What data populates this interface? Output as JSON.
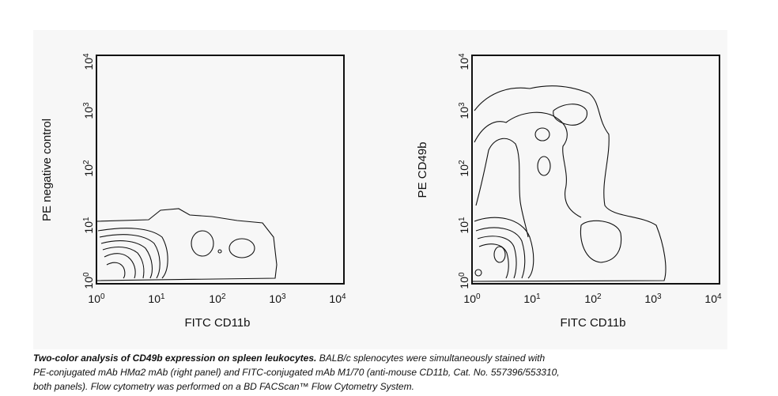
{
  "panels": [
    {
      "y_label": "PE negative control",
      "x_label": "FITC CD11b",
      "xticks": [
        {
          "base": "10",
          "exp": "0"
        },
        {
          "base": "10",
          "exp": "1"
        },
        {
          "base": "10",
          "exp": "2"
        },
        {
          "base": "10",
          "exp": "3"
        },
        {
          "base": "10",
          "exp": "4"
        }
      ],
      "yticks": [
        {
          "base": "10",
          "exp": "0"
        },
        {
          "base": "10",
          "exp": "1"
        },
        {
          "base": "10",
          "exp": "2"
        },
        {
          "base": "10",
          "exp": "3"
        },
        {
          "base": "10",
          "exp": "4"
        }
      ]
    },
    {
      "y_label": "PE CD49b",
      "x_label": "FITC CD11b",
      "xticks": [
        {
          "base": "10",
          "exp": "0"
        },
        {
          "base": "10",
          "exp": "1"
        },
        {
          "base": "10",
          "exp": "2"
        },
        {
          "base": "10",
          "exp": "3"
        },
        {
          "base": "10",
          "exp": "4"
        }
      ],
      "yticks": [
        {
          "base": "10",
          "exp": "0"
        },
        {
          "base": "10",
          "exp": "1"
        },
        {
          "base": "10",
          "exp": "2"
        },
        {
          "base": "10",
          "exp": "3"
        },
        {
          "base": "10",
          "exp": "4"
        }
      ]
    }
  ],
  "caption": {
    "title": "Two-color analysis of CD49b expression on spleen leukocytes.",
    "lines": [
      "BALB/c splenocytes were simultaneously stained with",
      "PE-conjugated mAb HMα2 mAb (right panel) and FITC-conjugated mAb M1/70 (anti-mouse CD11b, Cat. No. 557396/553310,",
      "both panels). Flow cytometry was performed on a BD FACScan™ Flow Cytometry System."
    ]
  }
}
